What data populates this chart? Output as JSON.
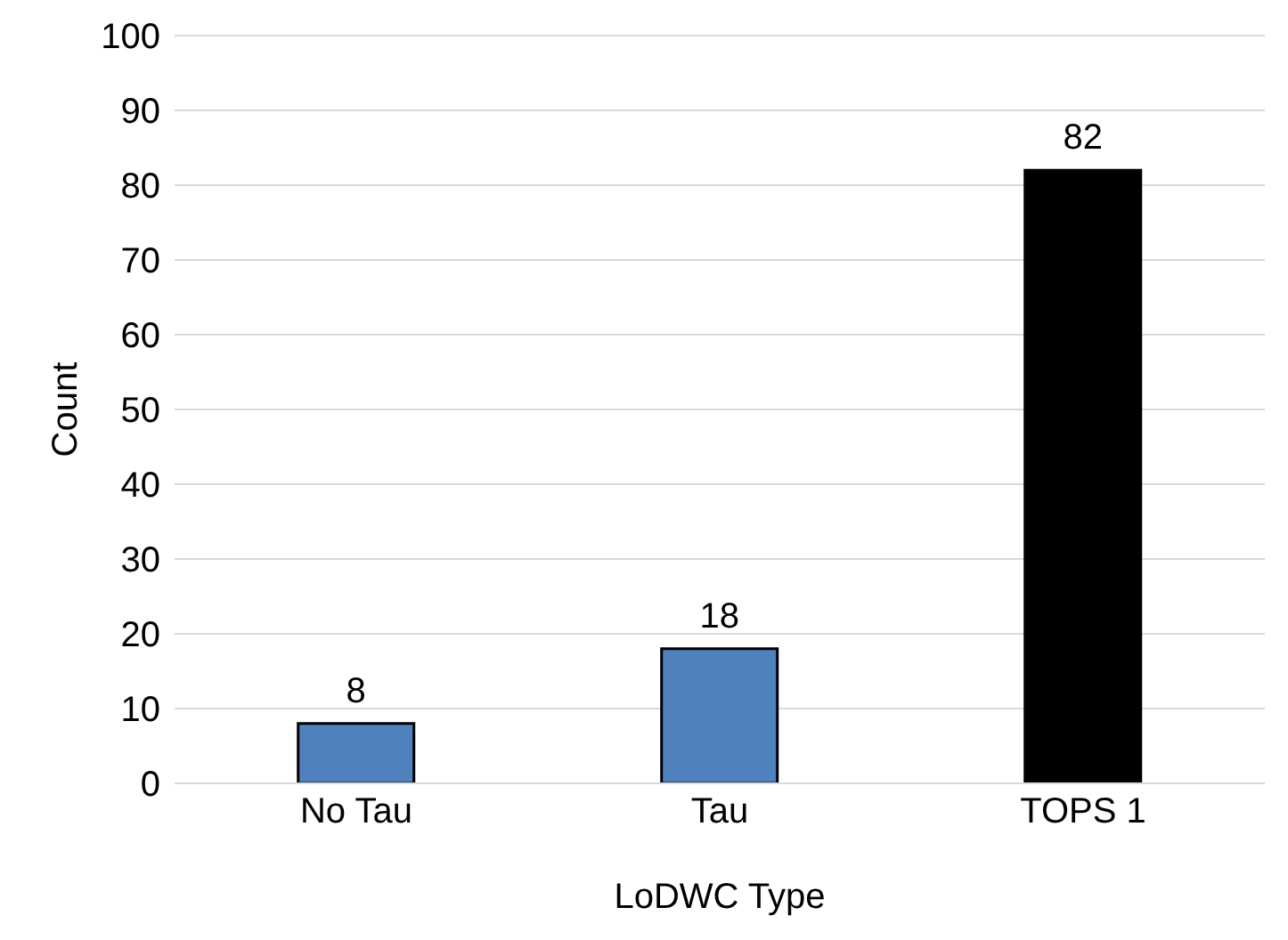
{
  "chart_data": {
    "type": "bar",
    "xlabel": "LoDWC Type",
    "ylabel": "Count",
    "categories": [
      "No Tau",
      "Tau",
      "TOPS 1"
    ],
    "values": [
      8,
      18,
      82
    ],
    "colors": [
      "#4f81bd",
      "#4f81bd",
      "#000000"
    ],
    "ylim": [
      0,
      100
    ],
    "yticks": [
      0,
      10,
      20,
      30,
      40,
      50,
      60,
      70,
      80,
      90,
      100
    ],
    "grid": "y",
    "data_labels": true
  }
}
